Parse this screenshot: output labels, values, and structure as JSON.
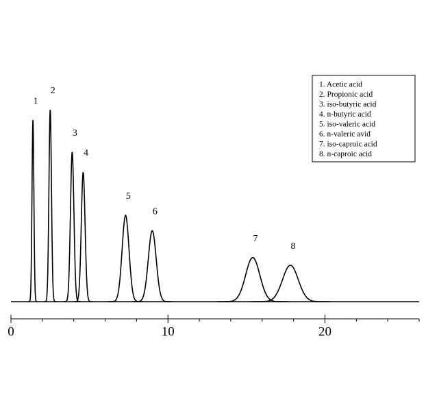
{
  "chart_data": {
    "type": "chromatogram",
    "xlim": [
      0,
      26
    ],
    "ylim": [
      0,
      100
    ],
    "xticks": [
      0,
      10,
      20
    ],
    "xminor_ticks": [
      2,
      4,
      6,
      8,
      12,
      14,
      16,
      18,
      22,
      24,
      26
    ],
    "color": "#000000",
    "legend_location": "upper right",
    "peaks": [
      {
        "label": "1",
        "name": "1.  Acetic acid",
        "x": 1.4,
        "height": 94.6,
        "width": 0.06
      },
      {
        "label": "2",
        "name": "2.  Propionic acid",
        "x": 2.5,
        "height": 100,
        "width": 0.08
      },
      {
        "label": "3",
        "name": "3.  iso-butyric acid",
        "x": 3.9,
        "height": 78,
        "width": 0.11
      },
      {
        "label": "4",
        "name": "4.  n-butyric acid",
        "x": 4.6,
        "height": 67.5,
        "width": 0.12
      },
      {
        "label": "5",
        "name": "5.  iso-valeric acid",
        "x": 7.3,
        "height": 45,
        "width": 0.22
      },
      {
        "label": "6",
        "name": "6.  n-valeric avid",
        "x": 9.0,
        "height": 37,
        "width": 0.25
      },
      {
        "label": "7",
        "name": "7.  iso-caproic acid",
        "x": 15.4,
        "height": 23,
        "width": 0.45
      },
      {
        "label": "8",
        "name": "8.  n-caproic acid",
        "x": 17.8,
        "height": 19,
        "width": 0.5
      }
    ]
  }
}
